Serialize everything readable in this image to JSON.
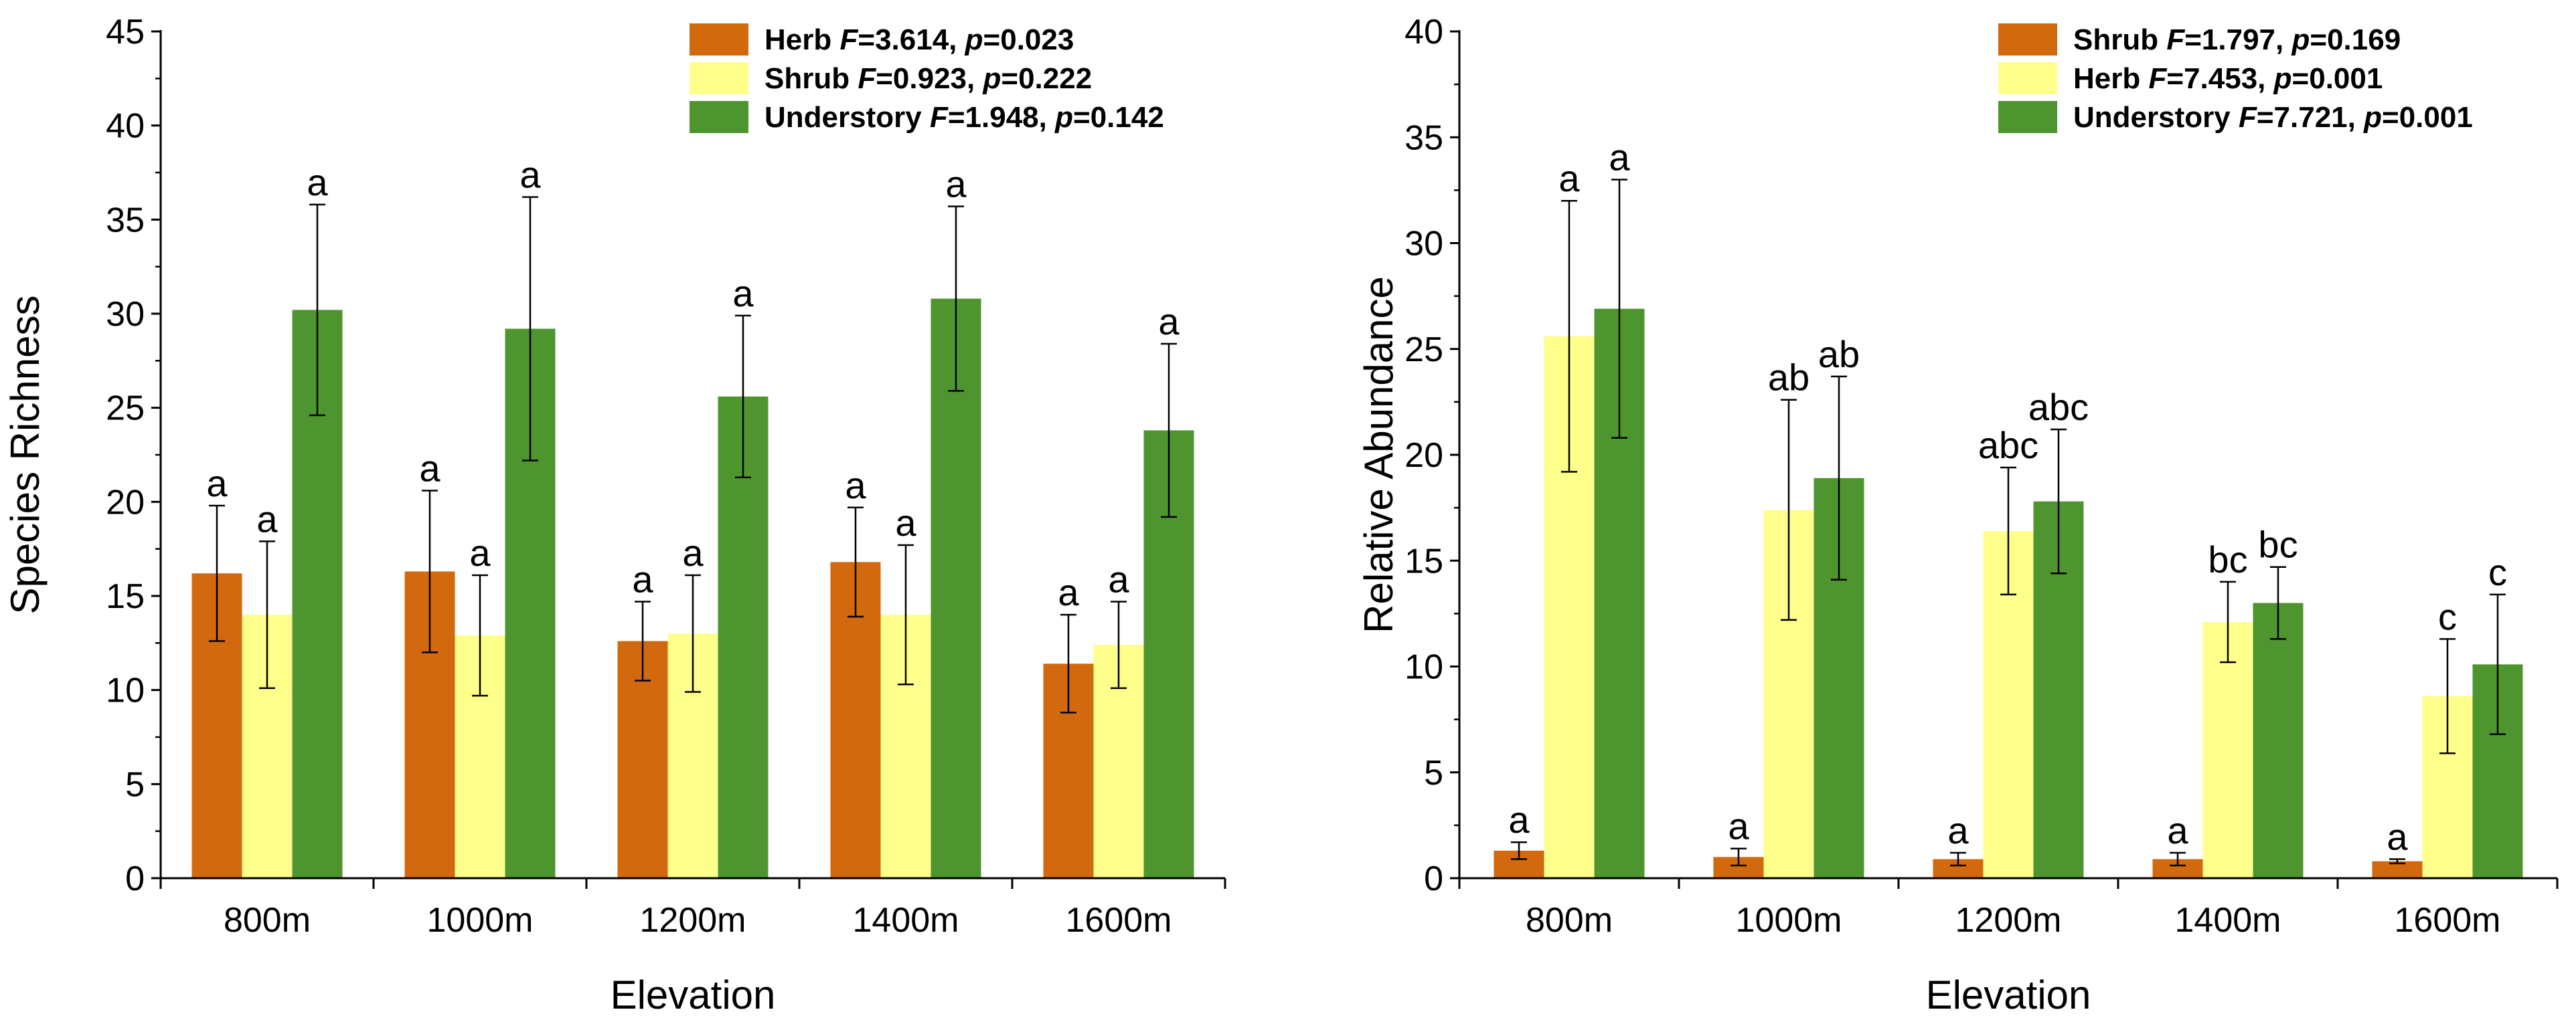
{
  "chart_data": [
    {
      "type": "bar",
      "xlabel": "Elevation",
      "ylabel": "Species Richness",
      "ylim": [
        0,
        45
      ],
      "yticks": [
        0,
        5,
        10,
        15,
        20,
        25,
        30,
        35,
        40,
        45
      ],
      "categories": [
        "800m",
        "1000m",
        "1200m",
        "1400m",
        "1600m"
      ],
      "legend_position": "top-right",
      "series": [
        {
          "name": "Herb",
          "stat": {
            "F_label": "F",
            "F_value": "=3.614,",
            "p_label": "p",
            "p_value": "=0.023"
          },
          "color": "#d2690e",
          "values": [
            16.2,
            16.3,
            12.6,
            16.8,
            11.4
          ],
          "errors": [
            3.6,
            4.3,
            2.1,
            2.9,
            2.6
          ],
          "labels": [
            "a",
            "a",
            "a",
            "a",
            "a"
          ]
        },
        {
          "name": "Shrub",
          "stat": {
            "F_label": "F",
            "F_value": "=0.923,",
            "p_label": "p",
            "p_value": "=0.222"
          },
          "color": "#ffff8c",
          "values": [
            14.0,
            12.9,
            13.0,
            14.0,
            12.4
          ],
          "errors": [
            3.9,
            3.2,
            3.1,
            3.7,
            2.3
          ],
          "labels": [
            "a",
            "a",
            "a",
            "a",
            "a"
          ]
        },
        {
          "name": "Understory",
          "stat": {
            "F_label": "F",
            "F_value": "=1.948,",
            "p_label": "p",
            "p_value": "=0.142"
          },
          "color": "#4f952f",
          "values": [
            30.2,
            29.2,
            25.6,
            30.8,
            23.8
          ],
          "errors": [
            5.6,
            7.0,
            4.3,
            4.9,
            4.6
          ],
          "labels": [
            "a",
            "a",
            "a",
            "a",
            "a"
          ]
        }
      ]
    },
    {
      "type": "bar",
      "xlabel": "Elevation",
      "ylabel": "Relative Abundance",
      "ylim": [
        0,
        40
      ],
      "yticks": [
        0,
        5,
        10,
        15,
        20,
        25,
        30,
        35,
        40
      ],
      "categories": [
        "800m",
        "1000m",
        "1200m",
        "1400m",
        "1600m"
      ],
      "legend_position": "top-right",
      "series": [
        {
          "name": "Shrub",
          "stat": {
            "F_label": "F",
            "F_value": "=1.797,",
            "p_label": "p",
            "p_value": "=0.169"
          },
          "color": "#d2690e",
          "values": [
            1.3,
            1.0,
            0.9,
            0.9,
            0.8
          ],
          "errors": [
            0.4,
            0.4,
            0.3,
            0.3,
            0.1
          ],
          "labels": [
            "a",
            "a",
            "a",
            "a",
            "a"
          ]
        },
        {
          "name": "Herb",
          "stat": {
            "F_label": "F",
            "F_value": "=7.453,",
            "p_label": "p",
            "p_value": "=0.001"
          },
          "color": "#ffff8c",
          "values": [
            25.6,
            17.4,
            16.4,
            12.1,
            8.6
          ],
          "errors": [
            6.4,
            5.2,
            3.0,
            1.9,
            2.7
          ],
          "labels": [
            "a",
            "ab",
            "abc",
            "bc",
            "c"
          ]
        },
        {
          "name": "Understory",
          "stat": {
            "F_label": "F",
            "F_value": "=7.721,",
            "p_label": "p",
            "p_value": "=0.001"
          },
          "color": "#4f952f",
          "values": [
            26.9,
            18.9,
            17.8,
            13.0,
            10.1
          ],
          "errors": [
            6.1,
            4.8,
            3.4,
            1.7,
            3.3
          ],
          "labels": [
            "a",
            "ab",
            "abc",
            "bc",
            "c"
          ]
        }
      ]
    }
  ]
}
